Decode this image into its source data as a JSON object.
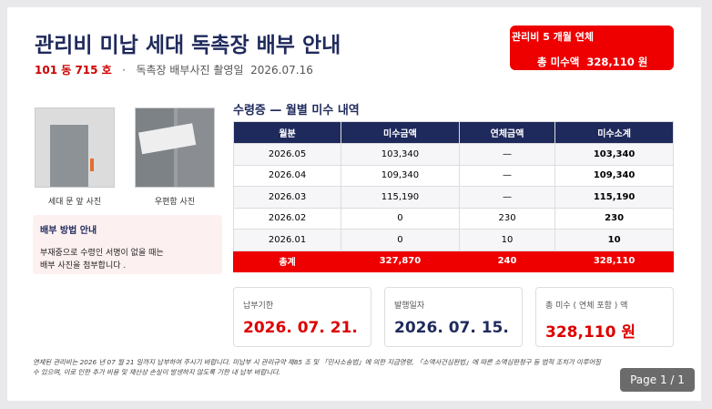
{
  "header": {
    "title": "관리비 미납 세대 독촉장 배부 안내",
    "unit": "101 동 715 호",
    "separator": "·",
    "photo_date_label": "독촉장 배부사진 촬영일",
    "photo_date": "2026.07.16"
  },
  "alert": {
    "line1": "관리비 5 개월 연체",
    "label": "총 미수액",
    "amount": "328,110 원"
  },
  "photos": [
    {
      "caption": "세대 문 앞 사진"
    },
    {
      "caption": "우편함 사진"
    }
  ],
  "guide": {
    "title": "배부 방법 안내",
    "lines": [
      "부재중으로 수령인 서명이 없을 때는",
      "배부 사진을 첨부합니다 ."
    ]
  },
  "table": {
    "title": "수령증 — 월별 미수 내역",
    "columns": [
      "월분",
      "미수금액",
      "연체금액",
      "미수소계"
    ],
    "rows": [
      [
        "2026.05",
        "103,340",
        "—",
        "103,340"
      ],
      [
        "2026.04",
        "109,340",
        "—",
        "109,340"
      ],
      [
        "2026.03",
        "115,190",
        "—",
        "115,190"
      ],
      [
        "2026.02",
        "0",
        "230",
        "230"
      ],
      [
        "2026.01",
        "0",
        "10",
        "10"
      ]
    ],
    "total": [
      "총계",
      "327,870",
      "240",
      "328,110"
    ]
  },
  "cards": [
    {
      "label": "납부기한",
      "value": "2026. 07. 21."
    },
    {
      "label": "발행일자",
      "value": "2026. 07. 15."
    },
    {
      "label": "총 미수 ( 연체 포함 ) 액",
      "value": "328,110 원"
    }
  ],
  "footer": {
    "lines": [
      "연체된 관리비는 2026 년 07 월 21 일까지 납부하여 주시기 바랍니다.   미납부 시 관리규약 제85 조 및 「민사소송법」에 의한 지급명령,  「소액사건심판법」에 따른 소액심판청구 등 법적 조치가 이루어질",
      "수 있으며,  이로 인한 추가 비용 및 재산상 손실이 발생하지 않도록 기한 내 납부 바랍니다."
    ]
  },
  "pager": "Page 1 / 1"
}
